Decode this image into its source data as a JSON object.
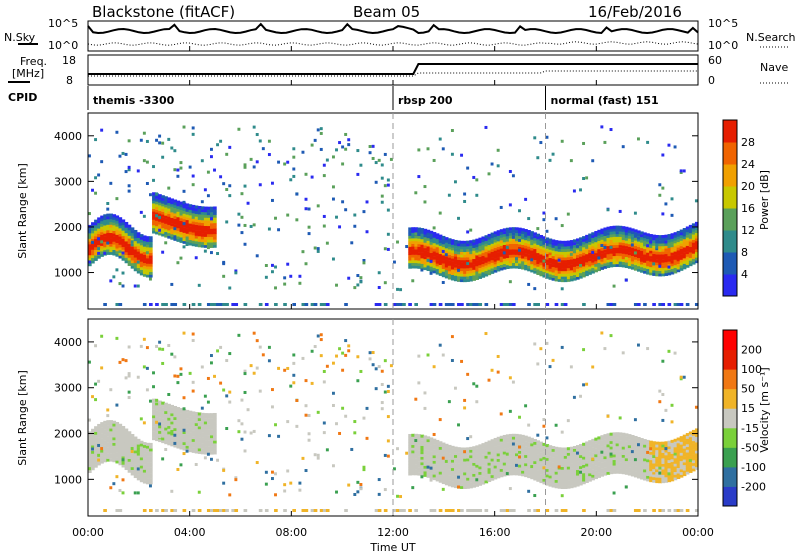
{
  "header": {
    "station": "Blackstone (fitACF)",
    "beam": "Beam 05",
    "date": "16/Feb/2016"
  },
  "sky_panel": {
    "left_label": "N.Sky",
    "right_label": "N.Search",
    "left_ticks": [
      "10^5",
      "10^0"
    ],
    "right_ticks": [
      "10^5",
      "10^0"
    ]
  },
  "freq_panel": {
    "left_label_line1": "Freq.",
    "left_label_line2": "[MHz]",
    "right_label": "Nave",
    "left_ticks": [
      "18",
      "8"
    ],
    "right_ticks": [
      "60",
      "0"
    ]
  },
  "cpid_panel": {
    "label": "CPID",
    "segments": [
      {
        "name": "themis -3300",
        "start_h": 0
      },
      {
        "name": "rbsp 200",
        "start_h": 12
      },
      {
        "name": "normal (fast) 151",
        "start_h": 18
      }
    ]
  },
  "chart_data": [
    {
      "type": "heatmap",
      "title": "",
      "ylabel": "Slant Range [km]",
      "xlabel": "",
      "ylim": [
        200,
        4500
      ],
      "xlim_hours": [
        0,
        24
      ],
      "yticks": [
        "1000",
        "2000",
        "3000",
        "4000"
      ],
      "colorbar": {
        "label": "Power [dB]",
        "ticks": [
          "4",
          "8",
          "12",
          "16",
          "20",
          "24",
          "28"
        ],
        "range": [
          0,
          32
        ],
        "colors": [
          "#2a2af0",
          "#1e5ab4",
          "#2f8b8b",
          "#5aa05a",
          "#c8c800",
          "#f0a000",
          "#f06400",
          "#e61e00"
        ]
      }
    },
    {
      "type": "heatmap",
      "title": "",
      "ylabel": "Slant Range [km]",
      "xlabel": "Time UT",
      "ylim": [
        200,
        4500
      ],
      "xlim_hours": [
        0,
        24
      ],
      "yticks": [
        "1000",
        "2000",
        "3000",
        "4000"
      ],
      "colorbar": {
        "label": "Velocity [m s⁻¹]",
        "ticks": [
          "200",
          "100",
          "50",
          "15",
          "-15",
          "-50",
          "-100",
          "-200"
        ],
        "colors": [
          "#2a3cc8",
          "#2f6fa0",
          "#3aa050",
          "#7ad03a",
          "#c8c8c0",
          "#f0b428",
          "#f07814",
          "#e61e00",
          "#ff0000"
        ]
      }
    }
  ],
  "x_axis": {
    "label": "Time UT",
    "ticks": [
      "00:00",
      "04:00",
      "08:00",
      "12:00",
      "16:00",
      "20:00",
      "00:00"
    ]
  }
}
